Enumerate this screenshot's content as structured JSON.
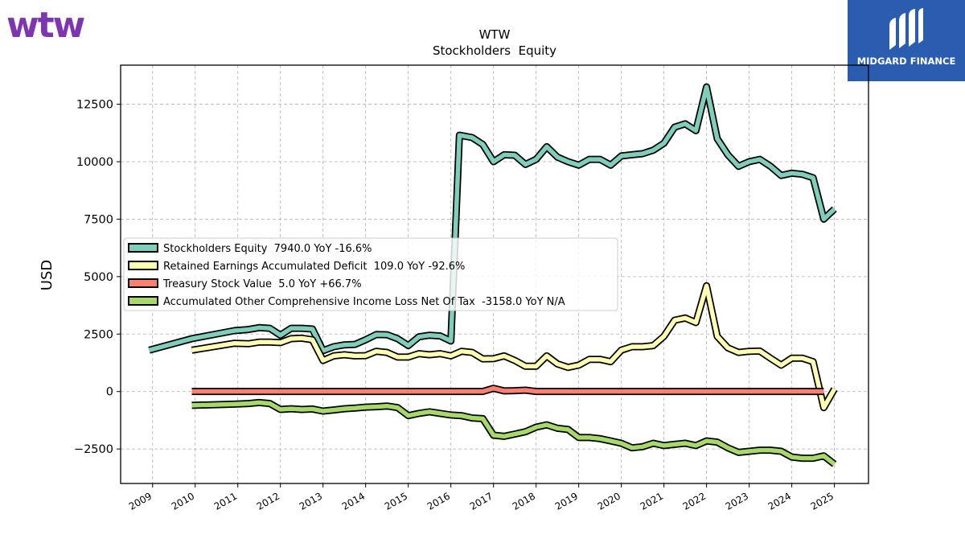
{
  "brand": {
    "company_logo_text": "wtw",
    "partner_name": "MIDGARD FINANCE",
    "colors": {
      "wtw_purple": "#7f35b2",
      "midgard_blue": "#2a5db0"
    }
  },
  "chart_data": {
    "type": "line",
    "title": "WTW",
    "subtitle": "Stockholders  Equity",
    "ylabel": "USD",
    "xlabel": "",
    "ylim": [
      -4000,
      14200
    ],
    "xlim": [
      2008.25,
      2025.8
    ],
    "yticks": [
      -2500,
      0,
      2500,
      5000,
      7500,
      10000,
      12500
    ],
    "xticks": [
      2009,
      2010,
      2011,
      2012,
      2013,
      2014,
      2015,
      2016,
      2017,
      2018,
      2019,
      2020,
      2021,
      2022,
      2023,
      2024,
      2025
    ],
    "grid": true,
    "legend_position": "center-left",
    "series": [
      {
        "name": "Stockholders Equity",
        "legend": "Stockholders Equity  7940.0 YoY -16.6%",
        "color": "#7fcdbb",
        "points": [
          [
            2008.92,
            1800
          ],
          [
            2009.92,
            2300
          ],
          [
            2010.92,
            2650
          ],
          [
            2011.25,
            2700
          ],
          [
            2011.5,
            2780
          ],
          [
            2011.75,
            2750
          ],
          [
            2012.0,
            2450
          ],
          [
            2012.25,
            2750
          ],
          [
            2012.5,
            2750
          ],
          [
            2012.75,
            2720
          ],
          [
            2013.0,
            1780
          ],
          [
            2013.25,
            1950
          ],
          [
            2013.5,
            2030
          ],
          [
            2013.75,
            2050
          ],
          [
            2014.0,
            2250
          ],
          [
            2014.25,
            2480
          ],
          [
            2014.5,
            2470
          ],
          [
            2014.75,
            2300
          ],
          [
            2015.0,
            2000
          ],
          [
            2015.25,
            2380
          ],
          [
            2015.5,
            2450
          ],
          [
            2015.75,
            2420
          ],
          [
            2016.0,
            2200
          ],
          [
            2016.2,
            11150
          ],
          [
            2016.5,
            11050
          ],
          [
            2016.75,
            10750
          ],
          [
            2017.0,
            10000
          ],
          [
            2017.25,
            10300
          ],
          [
            2017.5,
            10280
          ],
          [
            2017.75,
            9880
          ],
          [
            2018.0,
            10100
          ],
          [
            2018.25,
            10650
          ],
          [
            2018.5,
            10200
          ],
          [
            2018.75,
            10000
          ],
          [
            2019.0,
            9850
          ],
          [
            2019.25,
            10100
          ],
          [
            2019.5,
            10100
          ],
          [
            2019.75,
            9850
          ],
          [
            2020.0,
            10250
          ],
          [
            2020.25,
            10300
          ],
          [
            2020.5,
            10350
          ],
          [
            2020.75,
            10500
          ],
          [
            2021.0,
            10800
          ],
          [
            2021.25,
            11500
          ],
          [
            2021.5,
            11650
          ],
          [
            2021.75,
            11350
          ],
          [
            2022.0,
            13250
          ],
          [
            2022.25,
            11000
          ],
          [
            2022.5,
            10300
          ],
          [
            2022.75,
            9800
          ],
          [
            2023.0,
            10000
          ],
          [
            2023.25,
            10100
          ],
          [
            2023.5,
            9800
          ],
          [
            2023.75,
            9400
          ],
          [
            2024.0,
            9500
          ],
          [
            2024.25,
            9450
          ],
          [
            2024.5,
            9300
          ],
          [
            2024.75,
            7500
          ],
          [
            2025.0,
            7940
          ]
        ]
      },
      {
        "name": "Retained Earnings Accumulated Deficit",
        "legend": "Retained Earnings Accumulated Deficit  109.0 YoY -92.6%",
        "color": "#ffffb3",
        "points": [
          [
            2009.92,
            1800
          ],
          [
            2010.92,
            2100
          ],
          [
            2011.25,
            2080
          ],
          [
            2011.5,
            2150
          ],
          [
            2011.75,
            2150
          ],
          [
            2012.0,
            2130
          ],
          [
            2012.25,
            2300
          ],
          [
            2012.5,
            2320
          ],
          [
            2012.75,
            2250
          ],
          [
            2013.0,
            1350
          ],
          [
            2013.25,
            1550
          ],
          [
            2013.5,
            1600
          ],
          [
            2013.75,
            1550
          ],
          [
            2014.0,
            1560
          ],
          [
            2014.25,
            1750
          ],
          [
            2014.5,
            1700
          ],
          [
            2014.75,
            1500
          ],
          [
            2015.0,
            1500
          ],
          [
            2015.25,
            1650
          ],
          [
            2015.5,
            1600
          ],
          [
            2015.75,
            1650
          ],
          [
            2016.0,
            1550
          ],
          [
            2016.25,
            1750
          ],
          [
            2016.5,
            1700
          ],
          [
            2016.75,
            1420
          ],
          [
            2017.0,
            1430
          ],
          [
            2017.25,
            1550
          ],
          [
            2017.5,
            1350
          ],
          [
            2017.75,
            1100
          ],
          [
            2018.0,
            1100
          ],
          [
            2018.25,
            1550
          ],
          [
            2018.5,
            1200
          ],
          [
            2018.75,
            1050
          ],
          [
            2019.0,
            1150
          ],
          [
            2019.25,
            1400
          ],
          [
            2019.5,
            1400
          ],
          [
            2019.75,
            1300
          ],
          [
            2020.0,
            1800
          ],
          [
            2020.25,
            1950
          ],
          [
            2020.5,
            1950
          ],
          [
            2020.75,
            2000
          ],
          [
            2021.0,
            2400
          ],
          [
            2021.25,
            3100
          ],
          [
            2021.5,
            3200
          ],
          [
            2021.75,
            3000
          ],
          [
            2022.0,
            4600
          ],
          [
            2022.25,
            2400
          ],
          [
            2022.5,
            1900
          ],
          [
            2022.75,
            1700
          ],
          [
            2023.0,
            1750
          ],
          [
            2023.25,
            1760
          ],
          [
            2023.5,
            1450
          ],
          [
            2023.75,
            1150
          ],
          [
            2024.0,
            1450
          ],
          [
            2024.25,
            1450
          ],
          [
            2024.5,
            1300
          ],
          [
            2024.75,
            -700
          ],
          [
            2025.0,
            109
          ]
        ]
      },
      {
        "name": "Treasury Stock Value",
        "legend": "Treasury Stock Value  5.0 YoY +66.7%",
        "color": "#fb8072",
        "points": [
          [
            2009.92,
            3
          ],
          [
            2016.0,
            3
          ],
          [
            2016.75,
            3
          ],
          [
            2017.0,
            140
          ],
          [
            2017.25,
            30
          ],
          [
            2017.5,
            40
          ],
          [
            2017.75,
            60
          ],
          [
            2018.0,
            3
          ],
          [
            2019.0,
            3
          ],
          [
            2020.0,
            3
          ],
          [
            2021.0,
            3
          ],
          [
            2022.0,
            3
          ],
          [
            2023.0,
            3
          ],
          [
            2024.0,
            3
          ],
          [
            2024.75,
            5
          ]
        ]
      },
      {
        "name": "Accumulated Other Comprehensive Income Loss Net Of Tax",
        "legend": "Accumulated Other Comprehensive Income Loss Net Of Tax  -3158.0 YoY N/A",
        "color": "#a6d96a",
        "points": [
          [
            2009.92,
            -600
          ],
          [
            2010.92,
            -550
          ],
          [
            2011.25,
            -520
          ],
          [
            2011.5,
            -480
          ],
          [
            2011.75,
            -520
          ],
          [
            2012.0,
            -780
          ],
          [
            2012.25,
            -750
          ],
          [
            2012.5,
            -780
          ],
          [
            2012.75,
            -760
          ],
          [
            2013.0,
            -850
          ],
          [
            2013.25,
            -800
          ],
          [
            2013.5,
            -750
          ],
          [
            2013.75,
            -720
          ],
          [
            2014.0,
            -680
          ],
          [
            2014.25,
            -660
          ],
          [
            2014.5,
            -630
          ],
          [
            2014.75,
            -700
          ],
          [
            2015.0,
            -1050
          ],
          [
            2015.25,
            -950
          ],
          [
            2015.5,
            -880
          ],
          [
            2015.75,
            -950
          ],
          [
            2016.0,
            -1020
          ],
          [
            2016.25,
            -1050
          ],
          [
            2016.5,
            -1150
          ],
          [
            2016.75,
            -1180
          ],
          [
            2017.0,
            -1900
          ],
          [
            2017.25,
            -1950
          ],
          [
            2017.5,
            -1850
          ],
          [
            2017.75,
            -1750
          ],
          [
            2018.0,
            -1550
          ],
          [
            2018.25,
            -1450
          ],
          [
            2018.5,
            -1600
          ],
          [
            2018.75,
            -1650
          ],
          [
            2019.0,
            -2000
          ],
          [
            2019.25,
            -2000
          ],
          [
            2019.5,
            -2050
          ],
          [
            2019.75,
            -2150
          ],
          [
            2020.0,
            -2250
          ],
          [
            2020.25,
            -2450
          ],
          [
            2020.5,
            -2400
          ],
          [
            2020.75,
            -2250
          ],
          [
            2021.0,
            -2350
          ],
          [
            2021.25,
            -2300
          ],
          [
            2021.5,
            -2250
          ],
          [
            2021.75,
            -2350
          ],
          [
            2022.0,
            -2150
          ],
          [
            2022.25,
            -2200
          ],
          [
            2022.5,
            -2450
          ],
          [
            2022.75,
            -2650
          ],
          [
            2023.0,
            -2600
          ],
          [
            2023.25,
            -2550
          ],
          [
            2023.5,
            -2550
          ],
          [
            2023.75,
            -2600
          ],
          [
            2024.0,
            -2850
          ],
          [
            2024.25,
            -2900
          ],
          [
            2024.5,
            -2900
          ],
          [
            2024.75,
            -2800
          ],
          [
            2025.0,
            -3158
          ]
        ]
      }
    ]
  }
}
